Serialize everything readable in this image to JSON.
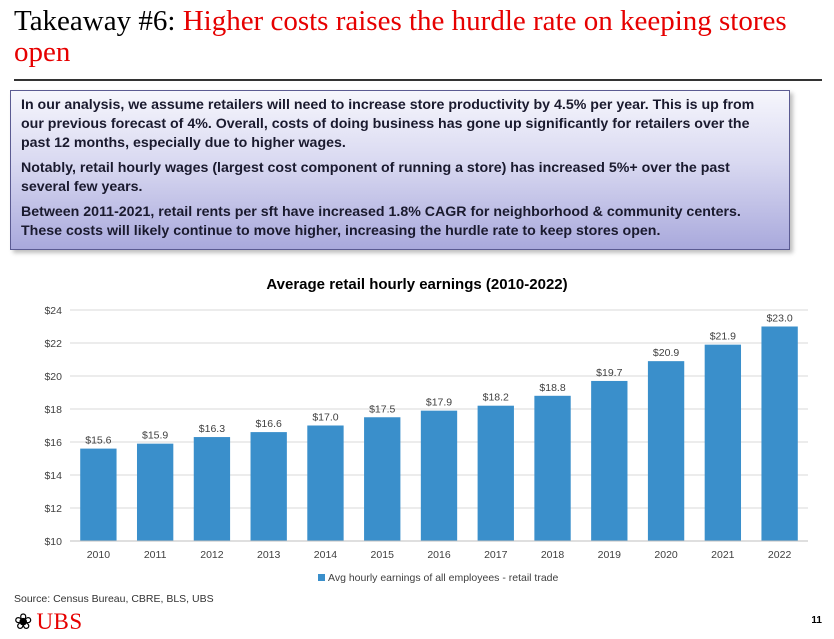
{
  "title": {
    "prefix": "Takeaway #6:",
    "highlight": "Higher costs raises the hurdle rate on keeping stores open"
  },
  "callout": {
    "paragraphs": [
      "In our analysis, we assume retailers will need to increase store productivity by 4.5% per year. This is up from our previous forecast of 4%. Overall, costs of doing business has gone up significantly for retailers over the past 12 months, especially due to higher wages.",
      "Notably, retail hourly wages (largest cost component of running a store) has increased 5%+ over the past several few years.",
      "Between 2011-2021, retail rents per sft have increased 1.8% CAGR for neighborhood & community centers. These costs will likely continue to move higher, increasing the hurdle rate to keep stores open."
    ]
  },
  "chart_data": {
    "type": "bar",
    "title": "Average retail hourly earnings (2010-2022)",
    "categories": [
      "2010",
      "2011",
      "2012",
      "2013",
      "2014",
      "2015",
      "2016",
      "2017",
      "2018",
      "2019",
      "2020",
      "2021",
      "2022"
    ],
    "series": [
      {
        "name": "Avg hourly earnings of all employees - retail trade",
        "values": [
          15.6,
          15.9,
          16.3,
          16.6,
          17.0,
          17.5,
          17.9,
          18.2,
          18.8,
          19.7,
          20.9,
          21.9,
          23.0
        ],
        "labels": [
          "$15.6",
          "$15.9",
          "$16.3",
          "$16.6",
          "$17.0",
          "$17.5",
          "$17.9",
          "$18.2",
          "$18.8",
          "$19.7",
          "$20.9",
          "$21.9",
          "$23.0"
        ]
      }
    ],
    "yticks": [
      10,
      12,
      14,
      16,
      18,
      20,
      22,
      24
    ],
    "ytick_labels": [
      "$10",
      "$12",
      "$14",
      "$16",
      "$18",
      "$20",
      "$22",
      "$24"
    ],
    "ylim": [
      10,
      24
    ],
    "xlabel": "",
    "ylabel": "",
    "grid": true,
    "legend": "bottom-center"
  },
  "colors": {
    "bar": "#3a8fcb",
    "title_red": "#e60000",
    "grid": "#d9d9d9"
  },
  "source": "Source: Census Bureau, CBRE, BLS, UBS",
  "logo": {
    "brand": "UBS"
  },
  "page_number": "11"
}
